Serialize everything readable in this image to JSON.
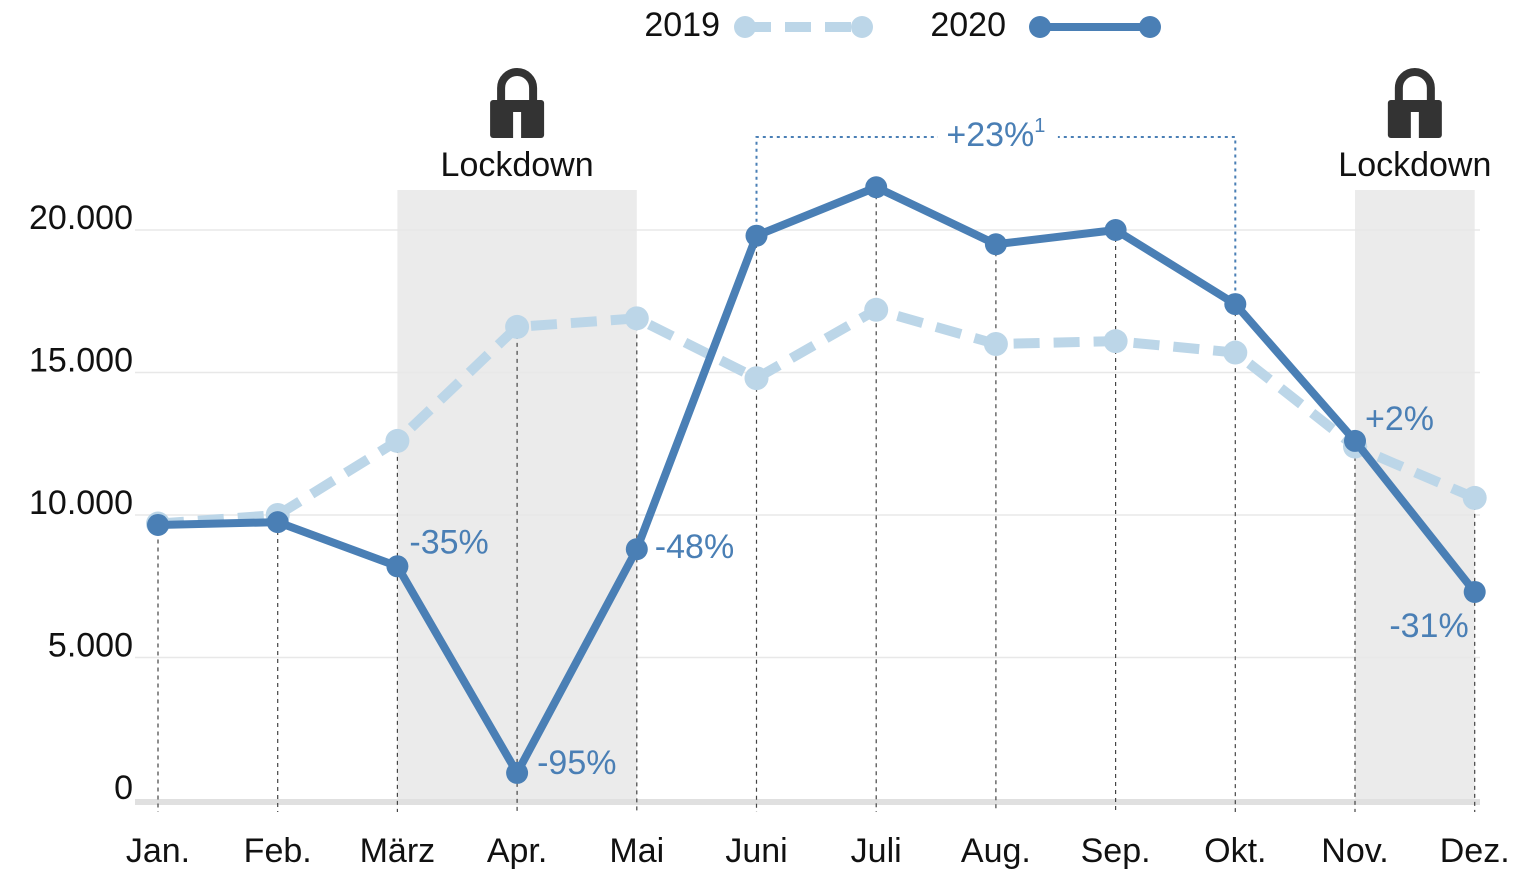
{
  "chart_data": {
    "type": "line",
    "categories": [
      "Jan.",
      "Feb.",
      "März",
      "Apr.",
      "Mai",
      "Juni",
      "Juli",
      "Aug.",
      "Sep.",
      "Okt.",
      "Nov.",
      "Dez."
    ],
    "series": [
      {
        "name": "2019",
        "color": "#bcd6e8",
        "dashed": true,
        "values": [
          9700,
          10000,
          12600,
          16600,
          16900,
          14800,
          17200,
          16000,
          16100,
          15700,
          12400,
          10600
        ]
      },
      {
        "name": "2020",
        "color": "#4a7fb5",
        "dashed": false,
        "values": [
          9650,
          9750,
          8200,
          950,
          8800,
          19800,
          21500,
          19500,
          20000,
          17400,
          12600,
          7300
        ]
      }
    ],
    "ylim": [
      0,
      22000
    ],
    "yticks": [
      0,
      {
        "value": 5000,
        "label": "5.000"
      },
      {
        "value": 10000,
        "label": "10.000"
      },
      {
        "value": 15000,
        "label": "15.000"
      },
      {
        "value": 20000,
        "label": "20.000"
      }
    ],
    "grid": true,
    "legend": "top",
    "annotations": [
      {
        "text": "-35%",
        "category": "März"
      },
      {
        "text": "-95%",
        "category": "Apr."
      },
      {
        "text": "-48%",
        "category": "Mai"
      },
      {
        "text": "+2%",
        "category": "Nov."
      },
      {
        "text": "-31%",
        "category": "Dez."
      }
    ],
    "shaded_ranges": [
      {
        "label": "Lockdown",
        "from": "März",
        "to": "Mai"
      },
      {
        "label": "Lockdown",
        "from": "Nov.",
        "to": "Dez."
      }
    ],
    "bracket": {
      "label": "+23%",
      "superscript": "1",
      "from": "Juni",
      "to": "Okt."
    }
  }
}
